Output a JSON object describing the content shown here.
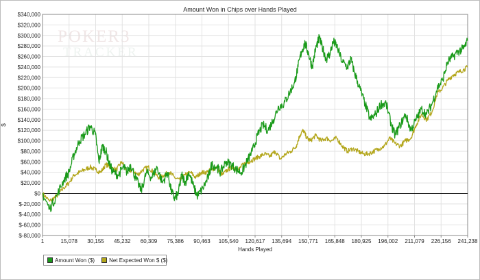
{
  "chart_data": {
    "type": "line",
    "title": "Amount Won in Chips over Hands Played",
    "xlabel": "Hands Played",
    "ylabel": "$",
    "xlim": [
      1,
      241238
    ],
    "ylim": [
      -80000,
      340000
    ],
    "x_ticks": [
      1,
      15078,
      30155,
      45232,
      60309,
      75386,
      90463,
      105540,
      120617,
      135694,
      150771,
      165848,
      180925,
      196002,
      211079,
      226156,
      241238
    ],
    "x_tick_labels": [
      "1",
      "15,078",
      "30,155",
      "45,232",
      "60,309",
      "75,386",
      "90,463",
      "105,540",
      "120,617",
      "135,694",
      "150,771",
      "165,848",
      "180,925",
      "196,002",
      "211,079",
      "226,156",
      "241,238"
    ],
    "y_ticks": [
      -80000,
      -60000,
      -40000,
      -20000,
      0,
      20000,
      40000,
      60000,
      80000,
      100000,
      120000,
      140000,
      160000,
      180000,
      200000,
      220000,
      240000,
      260000,
      280000,
      300000,
      320000,
      340000
    ],
    "y_tick_labels": [
      "$-80,000",
      "$-60,000",
      "$-40,000",
      "$-20,000",
      "$0",
      "$20,000",
      "$40,000",
      "$60,000",
      "$80,000",
      "$100,000",
      "$120,000",
      "$140,000",
      "$160,000",
      "$180,000",
      "$200,000",
      "$220,000",
      "$240,000",
      "$260,000",
      "$280,000",
      "$300,000",
      "$320,000",
      "$340,000"
    ],
    "grid": true,
    "legend_position": "bottom-left",
    "series": [
      {
        "name": "Amount Won ($)",
        "color": "#1a9a1a",
        "points": [
          [
            1,
            0
          ],
          [
            4000,
            -30000
          ],
          [
            8000,
            -5000
          ],
          [
            12000,
            25000
          ],
          [
            15000,
            40000
          ],
          [
            18000,
            75000
          ],
          [
            21000,
            100000
          ],
          [
            24000,
            112000
          ],
          [
            27000,
            128000
          ],
          [
            30000,
            112000
          ],
          [
            32000,
            60000
          ],
          [
            34000,
            90000
          ],
          [
            36000,
            80000
          ],
          [
            38000,
            55000
          ],
          [
            40000,
            40000
          ],
          [
            43000,
            35000
          ],
          [
            46000,
            50000
          ],
          [
            48000,
            40000
          ],
          [
            50000,
            55000
          ],
          [
            53000,
            28000
          ],
          [
            56000,
            5000
          ],
          [
            59000,
            40000
          ],
          [
            62000,
            30000
          ],
          [
            65000,
            50000
          ],
          [
            68000,
            20000
          ],
          [
            71000,
            40000
          ],
          [
            73000,
            5000
          ],
          [
            75000,
            -10000
          ],
          [
            77000,
            0
          ],
          [
            79000,
            35000
          ],
          [
            81000,
            20000
          ],
          [
            83000,
            40000
          ],
          [
            86000,
            10000
          ],
          [
            88000,
            -5000
          ],
          [
            91000,
            10000
          ],
          [
            94000,
            30000
          ],
          [
            96000,
            55000
          ],
          [
            99000,
            50000
          ],
          [
            101000,
            40000
          ],
          [
            104000,
            60000
          ],
          [
            107000,
            55000
          ],
          [
            110000,
            45000
          ],
          [
            113000,
            40000
          ],
          [
            116000,
            60000
          ],
          [
            119000,
            80000
          ],
          [
            122000,
            110000
          ],
          [
            125000,
            130000
          ],
          [
            128000,
            120000
          ],
          [
            131000,
            140000
          ],
          [
            134000,
            165000
          ],
          [
            137000,
            170000
          ],
          [
            140000,
            190000
          ],
          [
            143000,
            210000
          ],
          [
            145000,
            240000
          ],
          [
            147000,
            270000
          ],
          [
            149000,
            285000
          ],
          [
            151000,
            265000
          ],
          [
            153000,
            240000
          ],
          [
            155000,
            275000
          ],
          [
            157000,
            295000
          ],
          [
            159000,
            275000
          ],
          [
            161000,
            255000
          ],
          [
            163000,
            265000
          ],
          [
            165000,
            288000
          ],
          [
            167000,
            280000
          ],
          [
            170000,
            250000
          ],
          [
            173000,
            240000
          ],
          [
            175000,
            255000
          ],
          [
            177000,
            230000
          ],
          [
            180000,
            200000
          ],
          [
            183000,
            170000
          ],
          [
            186000,
            140000
          ],
          [
            189000,
            150000
          ],
          [
            192000,
            170000
          ],
          [
            195000,
            170000
          ],
          [
            198000,
            130000
          ],
          [
            200000,
            110000
          ],
          [
            203000,
            130000
          ],
          [
            206000,
            150000
          ],
          [
            209000,
            120000
          ],
          [
            212000,
            140000
          ],
          [
            215000,
            160000
          ],
          [
            218000,
            150000
          ],
          [
            221000,
            170000
          ],
          [
            224000,
            200000
          ],
          [
            227000,
            215000
          ],
          [
            230000,
            250000
          ],
          [
            233000,
            260000
          ],
          [
            236000,
            270000
          ],
          [
            239000,
            275000
          ],
          [
            241238,
            290000
          ]
        ]
      },
      {
        "name": "Net Expected Won $ ($)",
        "color": "#b3a61b",
        "points": [
          [
            1,
            0
          ],
          [
            4000,
            -15000
          ],
          [
            8000,
            -5000
          ],
          [
            12000,
            10000
          ],
          [
            15000,
            20000
          ],
          [
            18000,
            35000
          ],
          [
            21000,
            40000
          ],
          [
            24000,
            45000
          ],
          [
            27000,
            50000
          ],
          [
            30000,
            45000
          ],
          [
            33000,
            40000
          ],
          [
            36000,
            55000
          ],
          [
            39000,
            48000
          ],
          [
            42000,
            45000
          ],
          [
            45000,
            60000
          ],
          [
            48000,
            40000
          ],
          [
            51000,
            45000
          ],
          [
            54000,
            35000
          ],
          [
            57000,
            45000
          ],
          [
            60000,
            50000
          ],
          [
            63000,
            40000
          ],
          [
            66000,
            30000
          ],
          [
            69000,
            35000
          ],
          [
            72000,
            40000
          ],
          [
            75000,
            30000
          ],
          [
            78000,
            25000
          ],
          [
            81000,
            35000
          ],
          [
            84000,
            40000
          ],
          [
            87000,
            30000
          ],
          [
            90000,
            40000
          ],
          [
            93000,
            40000
          ],
          [
            96000,
            45000
          ],
          [
            99000,
            50000
          ],
          [
            102000,
            35000
          ],
          [
            105000,
            45000
          ],
          [
            108000,
            50000
          ],
          [
            111000,
            45000
          ],
          [
            114000,
            55000
          ],
          [
            117000,
            60000
          ],
          [
            120000,
            65000
          ],
          [
            123000,
            70000
          ],
          [
            126000,
            75000
          ],
          [
            129000,
            70000
          ],
          [
            132000,
            80000
          ],
          [
            135000,
            65000
          ],
          [
            138000,
            75000
          ],
          [
            141000,
            80000
          ],
          [
            144000,
            90000
          ],
          [
            146000,
            110000
          ],
          [
            148000,
            120000
          ],
          [
            150000,
            105000
          ],
          [
            152000,
            100000
          ],
          [
            155000,
            110000
          ],
          [
            158000,
            100000
          ],
          [
            161000,
            105000
          ],
          [
            164000,
            100000
          ],
          [
            167000,
            105000
          ],
          [
            170000,
            90000
          ],
          [
            173000,
            80000
          ],
          [
            176000,
            85000
          ],
          [
            179000,
            80000
          ],
          [
            182000,
            75000
          ],
          [
            185000,
            75000
          ],
          [
            188000,
            80000
          ],
          [
            191000,
            85000
          ],
          [
            194000,
            90000
          ],
          [
            197000,
            105000
          ],
          [
            200000,
            95000
          ],
          [
            203000,
            90000
          ],
          [
            206000,
            100000
          ],
          [
            209000,
            105000
          ],
          [
            212000,
            130000
          ],
          [
            215000,
            150000
          ],
          [
            218000,
            140000
          ],
          [
            221000,
            155000
          ],
          [
            224000,
            190000
          ],
          [
            227000,
            200000
          ],
          [
            230000,
            215000
          ],
          [
            233000,
            225000
          ],
          [
            236000,
            230000
          ],
          [
            239000,
            235000
          ],
          [
            241238,
            240000
          ]
        ]
      }
    ]
  },
  "watermark": {
    "line1": "POKER3",
    "line2": "TRACKER"
  }
}
